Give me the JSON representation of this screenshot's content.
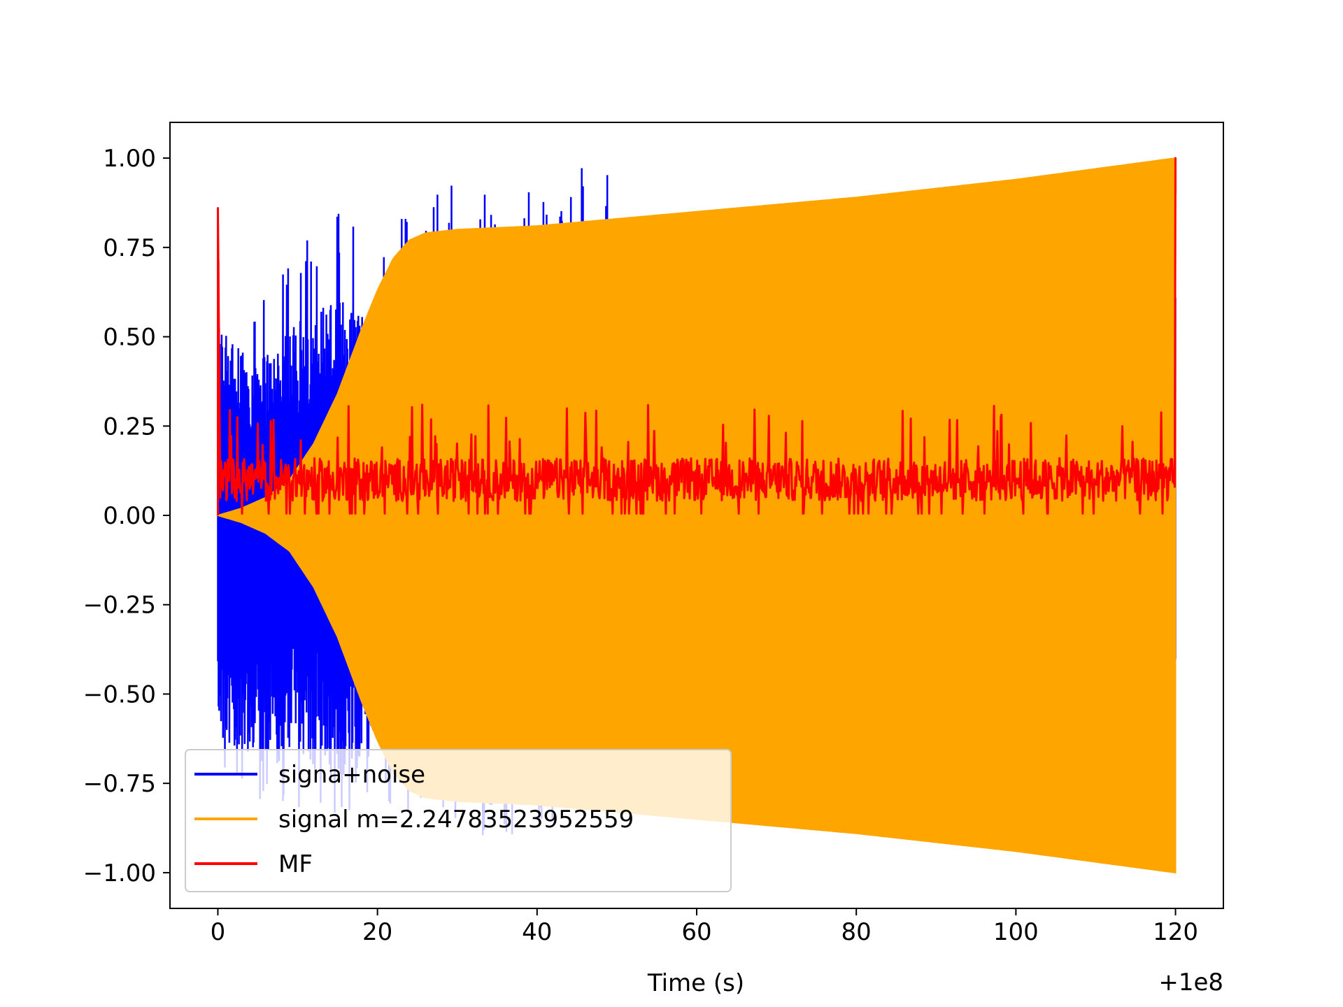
{
  "chart_data": {
    "type": "line",
    "title": "",
    "xlabel": "Time (s)",
    "ylabel": "",
    "x_offset_label": "+1e8",
    "xlim": [
      -6,
      126
    ],
    "ylim": [
      -1.1,
      1.1
    ],
    "x_ticks": [
      0,
      20,
      40,
      60,
      80,
      100,
      120
    ],
    "x_tick_labels": [
      "0",
      "20",
      "40",
      "60",
      "80",
      "100",
      "120"
    ],
    "y_ticks": [
      -1.0,
      -0.75,
      -0.5,
      -0.25,
      0.0,
      0.25,
      0.5,
      0.75,
      1.0
    ],
    "y_tick_labels": [
      "−1.00",
      "−0.75",
      "−0.50",
      "−0.25",
      "0.00",
      "0.25",
      "0.50",
      "0.75",
      "1.00"
    ],
    "grid": false,
    "legend_position": "lower-left",
    "series": [
      {
        "name": "signa+noise",
        "color": "#0000ff",
        "envelope_x": [
          0,
          5,
          10,
          15,
          20,
          25,
          30,
          35,
          40,
          47.5,
          55,
          60,
          67,
          80,
          90,
          100,
          105,
          110,
          120
        ],
        "envelope_max": [
          0.75,
          0.6,
          0.75,
          0.85,
          0.78,
          0.87,
          0.94,
          0.93,
          0.92,
          1.0,
          0.82,
          0.83,
          0.86,
          0.9,
          0.92,
          0.95,
          0.96,
          0.98,
          1.0
        ],
        "envelope_min": [
          -0.76,
          -0.8,
          -0.84,
          -0.87,
          -0.82,
          -0.84,
          -0.89,
          -0.93,
          -0.9,
          -0.83,
          -0.85,
          -0.87,
          -0.88,
          -0.9,
          -0.92,
          -0.95,
          -0.96,
          -0.97,
          -1.0
        ]
      },
      {
        "name": "signal m=2.24783523952559",
        "color": "#ffa500",
        "envelope_x": [
          0,
          3,
          6,
          9,
          12,
          15,
          18,
          20,
          22,
          24,
          26,
          28,
          30,
          40,
          60,
          80,
          100,
          120
        ],
        "envelope_amplitude": [
          0.0,
          0.02,
          0.05,
          0.1,
          0.2,
          0.34,
          0.52,
          0.63,
          0.72,
          0.77,
          0.79,
          0.795,
          0.8,
          0.81,
          0.85,
          0.89,
          0.94,
          1.0
        ]
      },
      {
        "name": "MF",
        "color": "#ff0000",
        "baseline_range": [
          0.0,
          0.31
        ],
        "typical_level": 0.1,
        "peaks": [
          {
            "x": 0,
            "y": 0.86
          },
          {
            "x": 120,
            "y": 1.0
          }
        ]
      }
    ]
  }
}
